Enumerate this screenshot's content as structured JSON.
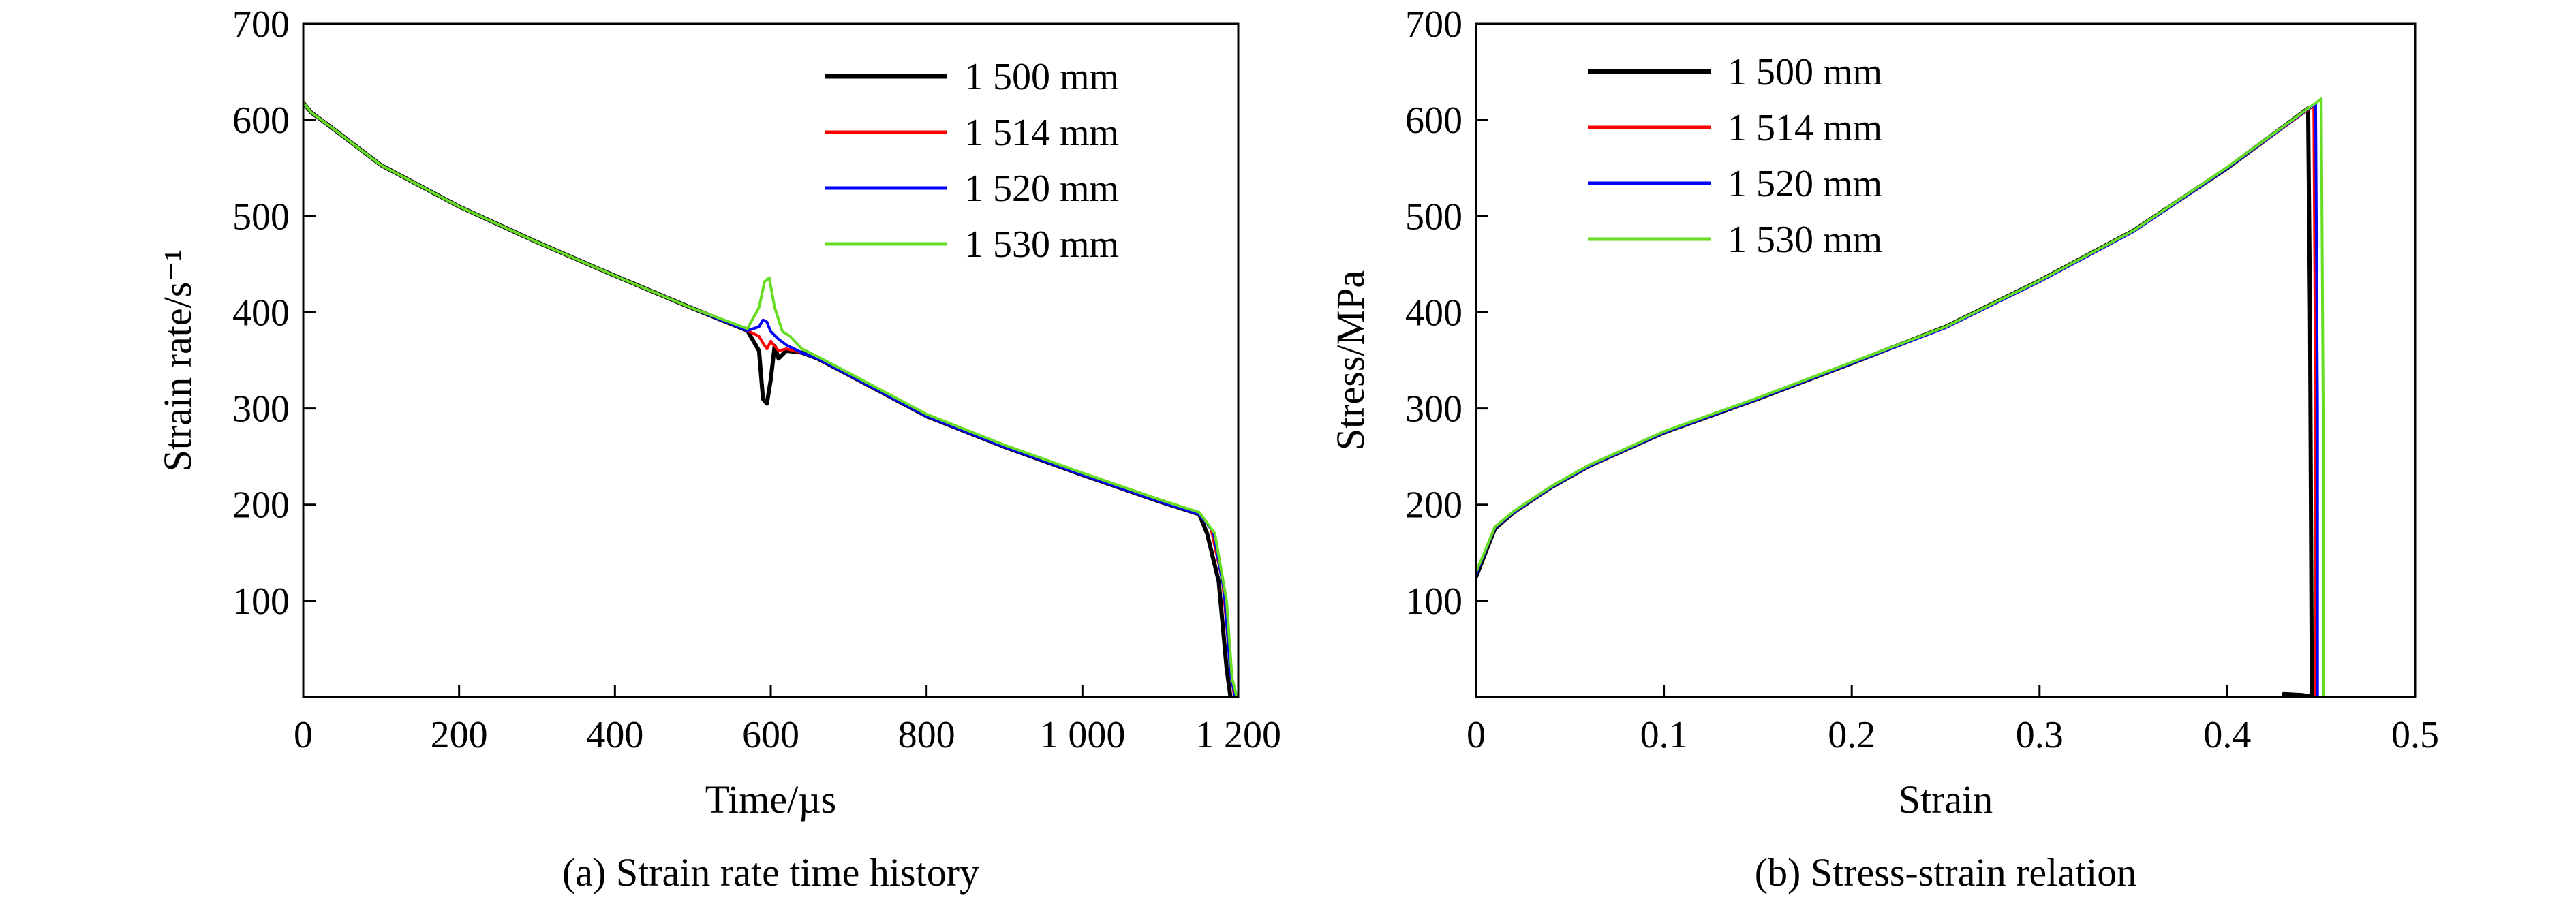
{
  "chart_data": [
    {
      "type": "line",
      "title": "",
      "caption": "(a) Strain rate time history",
      "xlabel": "Time/µs",
      "ylabel": "Strain rate/s⁻¹",
      "xlim": [
        0,
        1200
      ],
      "ylim": [
        0,
        700
      ],
      "xticks": [
        0,
        200,
        400,
        600,
        800,
        1000,
        1200
      ],
      "xtick_labels": [
        "0",
        "200",
        "400",
        "600",
        "800",
        "1 000",
        "1 200"
      ],
      "yticks": [
        100,
        200,
        300,
        400,
        500,
        600,
        700
      ],
      "ytick_labels": [
        "100",
        "200",
        "300",
        "400",
        "500",
        "600",
        "700"
      ],
      "grid": false,
      "legend_position": "top-right",
      "series": [
        {
          "name": "1 500 mm",
          "color": "#000000",
          "stroke_width": 6,
          "x": [
            0,
            10,
            40,
            100,
            200,
            300,
            400,
            500,
            570,
            585,
            590,
            595,
            600,
            605,
            610,
            620,
            640,
            660,
            700,
            800,
            900,
            1000,
            1100,
            1150,
            1160,
            1175,
            1185,
            1190
          ],
          "y": [
            618,
            608,
            590,
            553,
            510,
            473,
            438,
            404,
            381,
            360,
            310,
            305,
            330,
            365,
            352,
            360,
            358,
            352,
            335,
            292,
            260,
            231,
            203,
            190,
            170,
            120,
            30,
            0
          ]
        },
        {
          "name": "1 514 mm",
          "color": "#ff0000",
          "stroke_width": 4,
          "x": [
            0,
            10,
            40,
            100,
            200,
            300,
            400,
            500,
            570,
            585,
            590,
            595,
            600,
            610,
            620,
            640,
            660,
            700,
            800,
            900,
            1000,
            1100,
            1150,
            1165,
            1180,
            1190,
            1195
          ],
          "y": [
            618,
            608,
            590,
            553,
            510,
            473,
            438,
            404,
            381,
            375,
            368,
            362,
            370,
            360,
            362,
            358,
            352,
            335,
            292,
            260,
            231,
            203,
            190,
            175,
            120,
            30,
            0
          ]
        },
        {
          "name": "1 520 mm",
          "color": "#0000ff",
          "stroke_width": 4,
          "x": [
            0,
            10,
            40,
            100,
            200,
            300,
            400,
            500,
            570,
            585,
            590,
            595,
            600,
            610,
            620,
            640,
            660,
            700,
            800,
            900,
            1000,
            1100,
            1150,
            1168,
            1182,
            1190,
            1196
          ],
          "y": [
            618,
            608,
            590,
            553,
            510,
            473,
            438,
            404,
            381,
            385,
            392,
            390,
            380,
            372,
            366,
            358,
            352,
            335,
            292,
            260,
            231,
            203,
            190,
            172,
            110,
            25,
            0
          ]
        },
        {
          "name": "1 530 mm",
          "color": "#66dd22",
          "stroke_width": 4,
          "x": [
            0,
            10,
            40,
            100,
            200,
            300,
            400,
            500,
            570,
            585,
            592,
            598,
            605,
            615,
            625,
            640,
            660,
            700,
            800,
            900,
            1000,
            1100,
            1150,
            1170,
            1185,
            1192,
            1198
          ],
          "y": [
            618,
            608,
            590,
            553,
            510,
            473,
            438,
            404,
            383,
            405,
            432,
            436,
            405,
            380,
            375,
            362,
            354,
            337,
            294,
            262,
            233,
            205,
            192,
            170,
            100,
            20,
            0
          ]
        }
      ]
    },
    {
      "type": "line",
      "title": "",
      "caption": "(b) Stress-strain relation",
      "xlabel": "Strain",
      "ylabel": "Stress/MPa",
      "xlim": [
        0,
        0.5
      ],
      "ylim": [
        0,
        700
      ],
      "xticks": [
        0,
        0.1,
        0.2,
        0.3,
        0.4,
        0.5
      ],
      "xtick_labels": [
        "0",
        "0.1",
        "0.2",
        "0.3",
        "0.4",
        "0.5"
      ],
      "yticks": [
        100,
        200,
        300,
        400,
        500,
        600,
        700
      ],
      "ytick_labels": [
        "100",
        "200",
        "300",
        "400",
        "500",
        "600",
        "700"
      ],
      "grid": false,
      "legend_position": "top-left",
      "series": [
        {
          "name": "1 500 mm",
          "color": "#000000",
          "stroke_width": 6,
          "x": [
            0,
            0.005,
            0.01,
            0.02,
            0.04,
            0.06,
            0.1,
            0.15,
            0.2,
            0.25,
            0.3,
            0.35,
            0.4,
            0.443,
            0.444,
            0.445,
            0.44,
            0.43
          ],
          "y": [
            125,
            150,
            175,
            192,
            218,
            240,
            275,
            310,
            347,
            385,
            433,
            485,
            550,
            612,
            400,
            0,
            2,
            3
          ]
        },
        {
          "name": "1 514 mm",
          "color": "#ff0000",
          "stroke_width": 4,
          "x": [
            0,
            0.005,
            0.01,
            0.02,
            0.04,
            0.06,
            0.1,
            0.15,
            0.2,
            0.25,
            0.3,
            0.35,
            0.4,
            0.446,
            0.447,
            0.447
          ],
          "y": [
            128,
            152,
            176,
            192,
            218,
            240,
            275,
            310,
            347,
            384,
            432,
            484,
            550,
            615,
            300,
            0
          ]
        },
        {
          "name": "1 520 mm",
          "color": "#0000ff",
          "stroke_width": 4,
          "x": [
            0,
            0.005,
            0.01,
            0.02,
            0.04,
            0.06,
            0.1,
            0.15,
            0.2,
            0.25,
            0.3,
            0.35,
            0.4,
            0.447,
            0.448,
            0.448
          ],
          "y": [
            128,
            152,
            176,
            192,
            218,
            240,
            275,
            310,
            347,
            384,
            432,
            484,
            550,
            617,
            300,
            0
          ]
        },
        {
          "name": "1 530 mm",
          "color": "#66dd22",
          "stroke_width": 4,
          "x": [
            0,
            0.005,
            0.01,
            0.02,
            0.04,
            0.06,
            0.1,
            0.15,
            0.2,
            0.25,
            0.3,
            0.35,
            0.4,
            0.45,
            0.451,
            0.451
          ],
          "y": [
            130,
            153,
            177,
            193,
            219,
            241,
            276,
            311,
            348,
            385,
            433,
            485,
            551,
            622,
            300,
            0
          ]
        }
      ]
    }
  ]
}
